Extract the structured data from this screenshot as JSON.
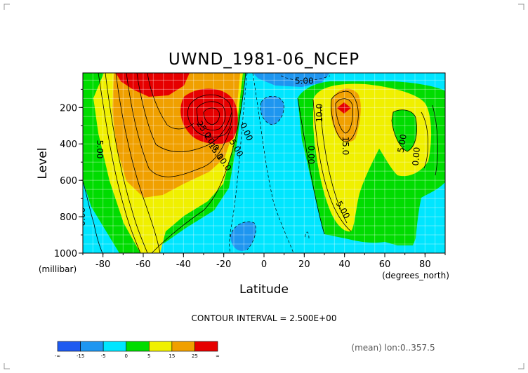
{
  "chart_data": {
    "type": "heatmap",
    "title": "UWND_1981-06_NCEP",
    "xlabel": "Latitude",
    "ylabel": "Level",
    "x_unit": "(degrees_north)",
    "y_unit": "(millibar)",
    "xlim": [
      -90,
      90
    ],
    "ylim": [
      1000,
      10
    ],
    "x_ticks": [
      -80,
      -60,
      -40,
      -20,
      0,
      20,
      40,
      60,
      80
    ],
    "y_ticks": [
      200,
      400,
      600,
      800,
      1000
    ],
    "contour_interval_text": "CONTOUR INTERVAL = 2.500E+00",
    "footnote": "(mean) lon:0..357.5",
    "colorbar": {
      "labels": [
        "-∞",
        "-15",
        "-5",
        "0",
        "5",
        "15",
        "25",
        "∞"
      ],
      "colors": [
        "#1e5af0",
        "#1e96f0",
        "#00e6ff",
        "#00dc00",
        "#f0f000",
        "#f0a000",
        "#e60000"
      ]
    },
    "contour_labels": [
      {
        "text": "5.00",
        "x": -83,
        "y": 430,
        "angle": 90
      },
      {
        "text": "0.00",
        "x": -89,
        "y": 800,
        "angle": -90
      },
      {
        "text": "5.00",
        "x": 20,
        "y": 70,
        "angle": 0
      },
      {
        "text": "25.0",
        "x": -31,
        "y": 330,
        "angle": 55
      },
      {
        "text": "20.0",
        "x": -27,
        "y": 400,
        "angle": 55
      },
      {
        "text": "15.0",
        "x": -25,
        "y": 450,
        "angle": 55
      },
      {
        "text": "10.0",
        "x": -21,
        "y": 510,
        "angle": 55
      },
      {
        "text": "5.00",
        "x": -15,
        "y": 430,
        "angle": 60
      },
      {
        "text": "0.00",
        "x": -10,
        "y": 340,
        "angle": 65
      },
      {
        "text": "0.00",
        "x": 22,
        "y": 460,
        "angle": 90
      },
      {
        "text": "10.0",
        "x": 29,
        "y": 230,
        "angle": -90
      },
      {
        "text": "15.0",
        "x": 39,
        "y": 410,
        "angle": 90
      },
      {
        "text": "5.00",
        "x": 38,
        "y": 770,
        "angle": 60
      },
      {
        "text": "5.00",
        "x": 70,
        "y": 400,
        "angle": -80
      },
      {
        "text": "0.00",
        "x": 77,
        "y": 470,
        "angle": -85
      },
      {
        "text": "0.00",
        "x": 90,
        "y": 280,
        "angle": 90
      }
    ]
  }
}
